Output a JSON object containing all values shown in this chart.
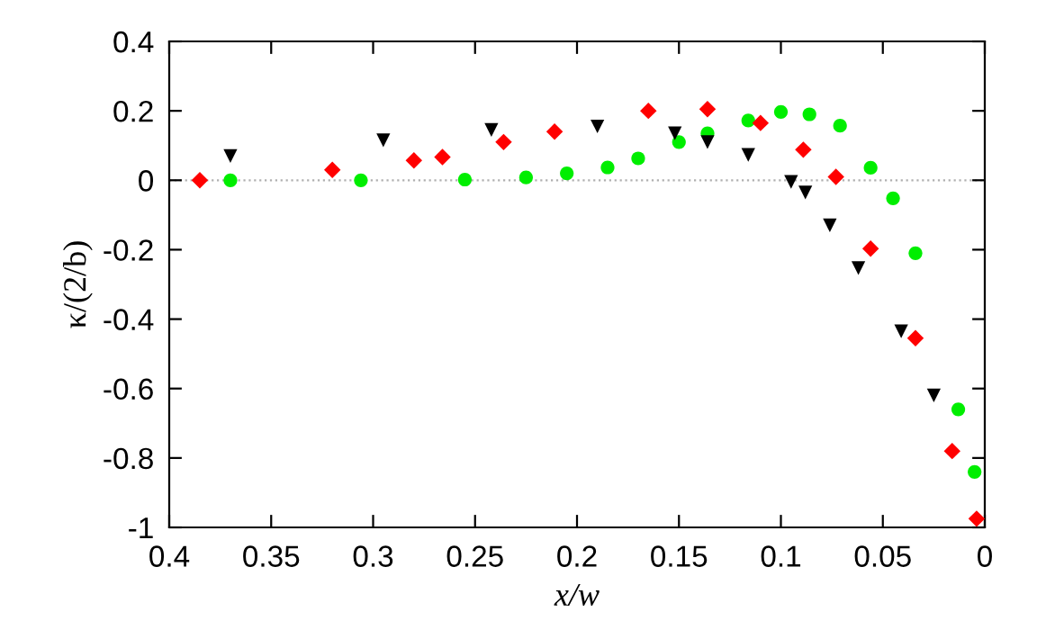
{
  "chart_data": {
    "type": "scatter",
    "xlabel": "x/w",
    "ylabel": "κ/(2/b)",
    "xlim": [
      0.4,
      0
    ],
    "ylim": [
      -1,
      0.4
    ],
    "xticks": [
      0.4,
      0.35,
      0.3,
      0.25,
      0.2,
      0.15,
      0.1,
      0.05,
      0
    ],
    "yticks": [
      -1,
      -0.8,
      -0.6,
      -0.4,
      -0.2,
      0,
      0.2,
      0.4
    ],
    "grid": false,
    "legend": false,
    "ref_lines": [
      {
        "axis": "y",
        "value": 0,
        "color": "#b0b0b0",
        "line_style": "dotted"
      }
    ],
    "series": [
      {
        "color": "#ff0000",
        "marker": "diamond",
        "x": [
          0.385,
          0.32,
          0.28,
          0.266,
          0.236,
          0.211,
          0.165,
          0.136,
          0.11,
          0.089,
          0.073,
          0.056,
          0.034,
          0.016,
          0.004
        ],
        "values": [
          0,
          0.03,
          0.057,
          0.067,
          0.11,
          0.14,
          0.2,
          0.205,
          0.165,
          0.088,
          0.01,
          -0.197,
          -0.455,
          -0.78,
          -0.975
        ]
      },
      {
        "color": "#000000",
        "marker": "triangle",
        "x": [
          0.37,
          0.295,
          0.242,
          0.19,
          0.152,
          0.136,
          0.116,
          0.095,
          0.088,
          0.076,
          0.062,
          0.041,
          0.025
        ],
        "values": [
          0.07,
          0.115,
          0.145,
          0.155,
          0.135,
          0.11,
          0.073,
          -0.005,
          -0.035,
          -0.13,
          -0.253,
          -0.435,
          -0.62
        ]
      },
      {
        "color": "#00ee00",
        "marker": "circle",
        "x": [
          0.37,
          0.306,
          0.255,
          0.225,
          0.205,
          0.185,
          0.17,
          0.15,
          0.136,
          0.116,
          0.1,
          0.086,
          0.071,
          0.056,
          0.045,
          0.034,
          0.013,
          0.005
        ],
        "values": [
          0,
          0,
          0.002,
          0.008,
          0.02,
          0.037,
          0.063,
          0.11,
          0.135,
          0.172,
          0.197,
          0.19,
          0.157,
          0.036,
          -0.052,
          -0.21,
          -0.66,
          -0.84
        ]
      }
    ]
  }
}
